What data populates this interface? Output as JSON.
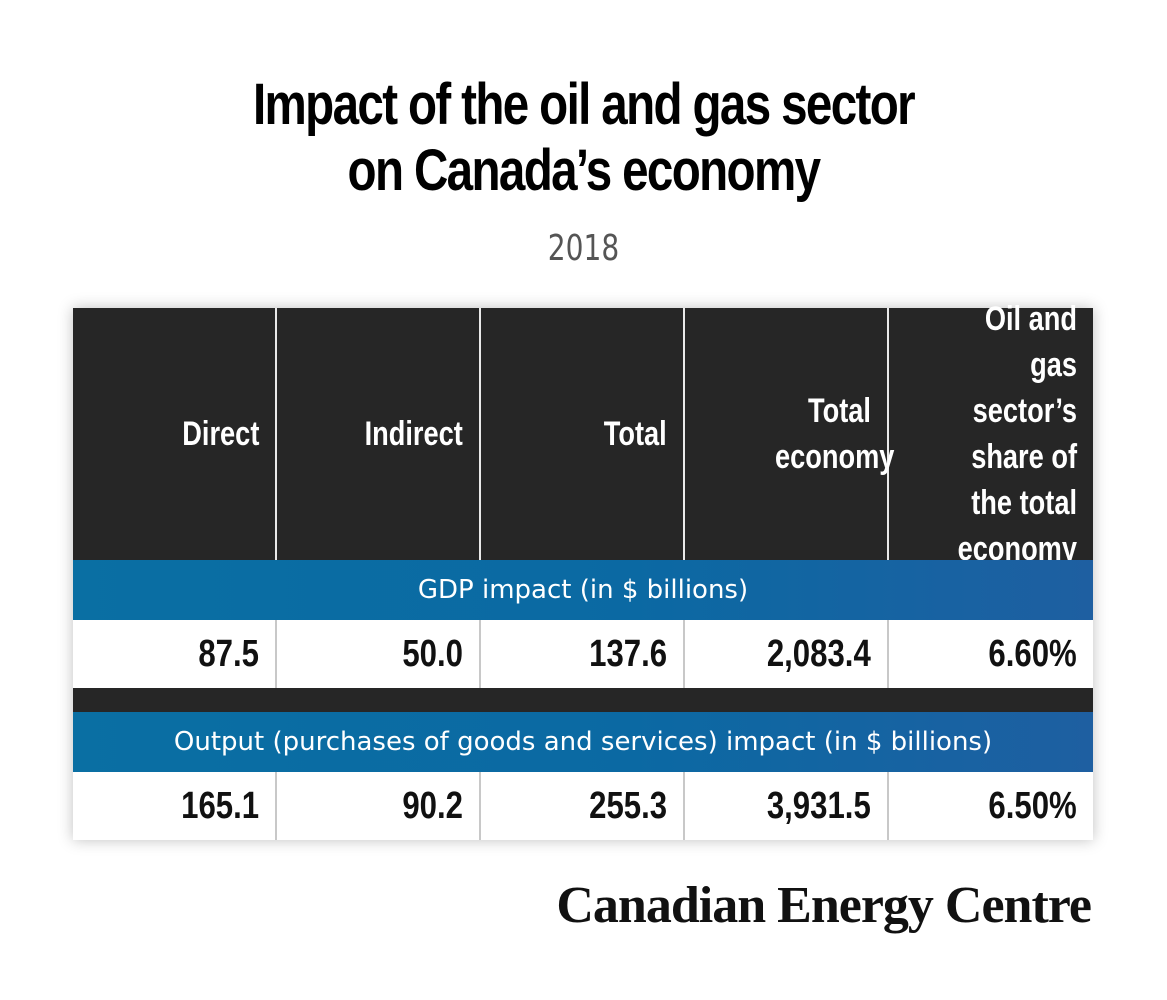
{
  "title_line1": "Impact of the oil and gas sector",
  "title_line2": "on Canada’s economy",
  "subtitle": "2018",
  "brand": "Canadian Energy Centre",
  "colors": {
    "header_bg": "#262626",
    "band_blue": "#0a6fa3",
    "text_dark": "#111111",
    "subtitle_gray": "#555555"
  },
  "chart_data": {
    "type": "table",
    "columns": [
      "Direct",
      "Indirect",
      "Total",
      "Total economy",
      "Oil and gas sector’s share of the total economy"
    ],
    "sections": [
      {
        "label": "GDP impact (in $ billions)",
        "cells": [
          "87.5",
          "50.0",
          "137.6",
          "2,083.4",
          "6.60%"
        ],
        "values": [
          87.5,
          50.0,
          137.6,
          2083.4,
          6.6
        ]
      },
      {
        "label": "Output (purchases of goods and services) impact (in $ billions)",
        "cells": [
          "165.1",
          "90.2",
          "255.3",
          "3,931.5",
          "6.50%"
        ],
        "values": [
          165.1,
          90.2,
          255.3,
          3931.5,
          6.5
        ]
      }
    ]
  }
}
